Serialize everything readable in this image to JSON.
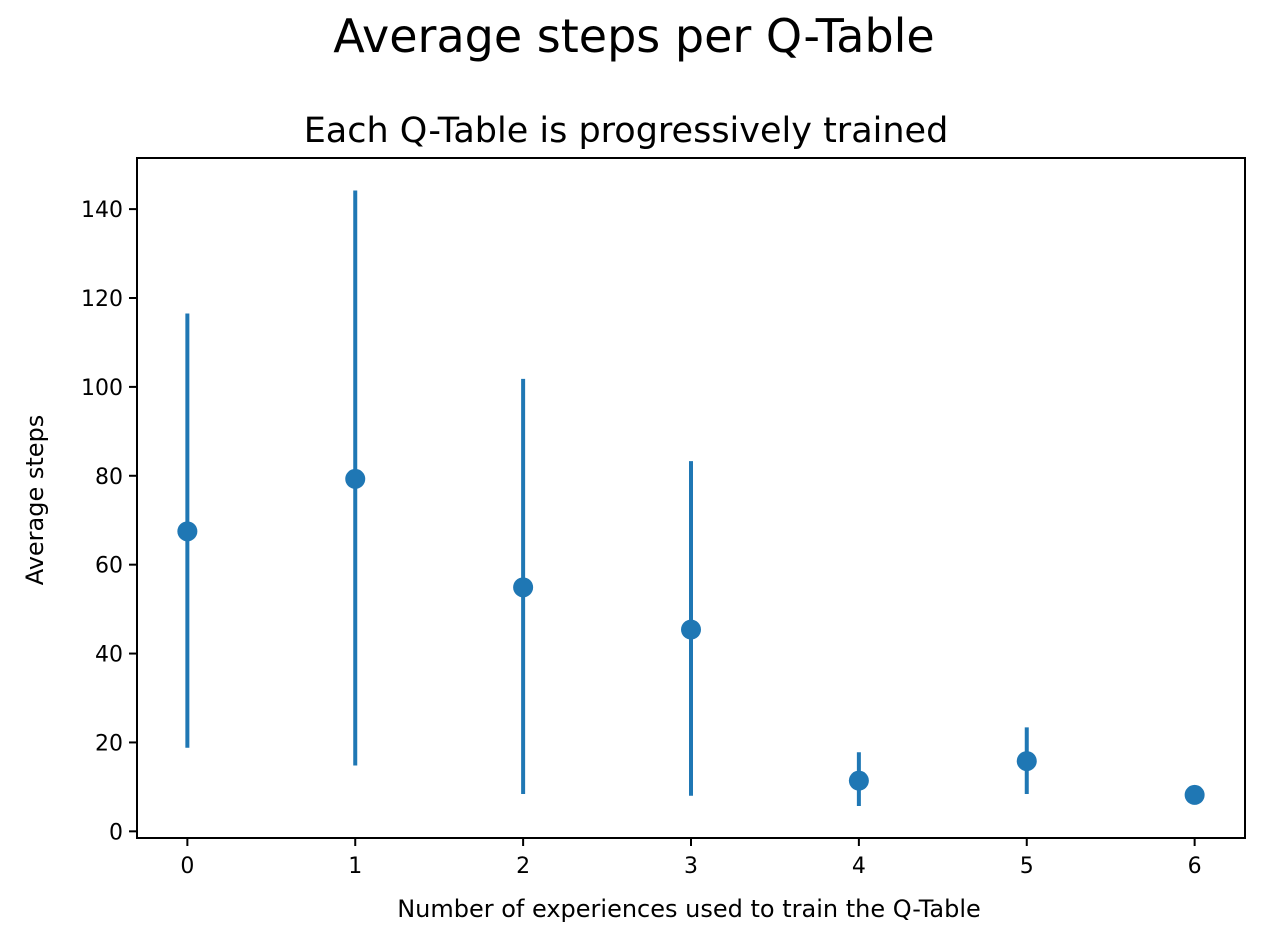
{
  "chart_data": {
    "type": "scatter",
    "title": "Average steps per Q-Table",
    "subtitle": "Each Q-Table is progressively trained",
    "xlabel": "Number of experiences used to train the Q-Table",
    "ylabel": "Average steps",
    "xlim": [
      -0.3,
      6.3
    ],
    "ylim": [
      -1.5,
      151.5
    ],
    "xticks": [
      0,
      1,
      2,
      3,
      4,
      5,
      6
    ],
    "yticks": [
      0,
      20,
      40,
      60,
      80,
      100,
      120,
      140
    ],
    "grid": false,
    "legend": "none",
    "color": "#1f77b4",
    "series": [
      {
        "x": [
          0,
          1,
          2,
          3,
          4,
          5,
          6
        ],
        "y": [
          67.5,
          79.3,
          54.9,
          45.4,
          11.4,
          15.8,
          8.2
        ],
        "yerr_low": [
          18.8,
          14.8,
          8.4,
          8.0,
          5.7,
          8.4,
          7.6
        ],
        "yerr_high": [
          116.5,
          144.2,
          101.8,
          83.3,
          17.8,
          23.4,
          8.8
        ]
      }
    ]
  }
}
